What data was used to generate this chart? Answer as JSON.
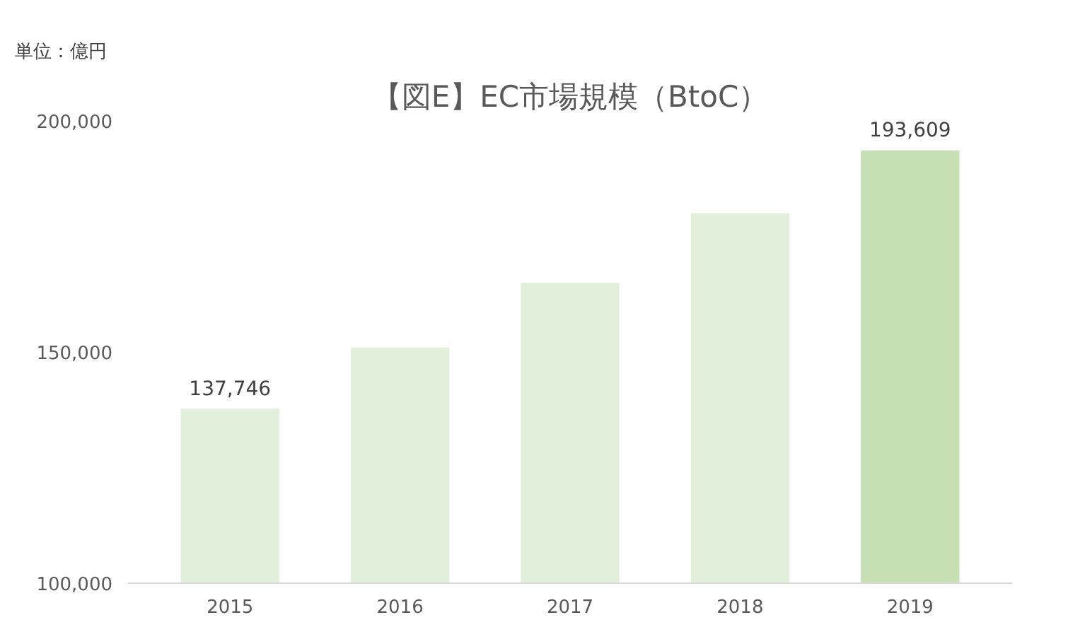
{
  "chart_data": {
    "type": "bar",
    "title": "【図E】EC市場規模（BtoC）",
    "annotations": [
      "単位：億円"
    ],
    "categories": [
      "2015",
      "2016",
      "2017",
      "2018",
      "2019"
    ],
    "values": [
      137746,
      151000,
      165000,
      180000,
      193609
    ],
    "colors": [
      "#e2efda",
      "#e2efda",
      "#e2efda",
      "#e2efda",
      "#c6e0b4"
    ],
    "value_labels": [
      "137,746",
      null,
      null,
      null,
      "193,609"
    ],
    "ylim": [
      100000,
      200000
    ],
    "yticks": [
      {
        "value": 100000,
        "label": "100,000"
      },
      {
        "value": 150000,
        "label": "150,000"
      },
      {
        "value": 200000,
        "label": "200,000"
      }
    ],
    "grid": false
  }
}
